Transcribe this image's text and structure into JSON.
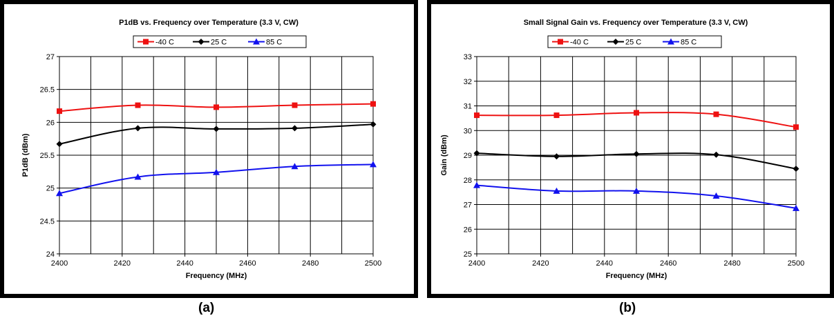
{
  "chart_data": [
    {
      "type": "line",
      "title": "P1dB vs. Frequency over Temperature (3.3 V, CW)",
      "xlabel": "Frequency (MHz)",
      "ylabel": "P1dB (dBm)",
      "xlim": [
        2400,
        2500
      ],
      "ylim": [
        24,
        27
      ],
      "xticks": [
        2400,
        2420,
        2440,
        2460,
        2480,
        2500
      ],
      "yticks": [
        "24",
        "24.5",
        "25",
        "25.5",
        "26",
        "26.5",
        "27"
      ],
      "grid": true,
      "legend": "top-center",
      "caption": "(a)",
      "series": [
        {
          "name": "-40 C",
          "color": "#ee1111",
          "marker": "square",
          "x": [
            2400,
            2425,
            2450,
            2475,
            2500
          ],
          "values": [
            26.17,
            26.26,
            26.23,
            26.26,
            26.28
          ]
        },
        {
          "name": "25 C",
          "color": "#000000",
          "marker": "diamond",
          "x": [
            2400,
            2425,
            2450,
            2475,
            2500
          ],
          "values": [
            25.67,
            25.91,
            25.9,
            25.91,
            25.97
          ]
        },
        {
          "name": "85 C",
          "color": "#1111ee",
          "marker": "triangle",
          "x": [
            2400,
            2425,
            2450,
            2475,
            2500
          ],
          "values": [
            24.92,
            25.17,
            25.24,
            25.33,
            25.36
          ]
        }
      ]
    },
    {
      "type": "line",
      "title": "Small Signal Gain vs. Frequency over Temperature (3.3 V, CW)",
      "xlabel": "Frequency (MHz)",
      "ylabel": "Gain (dBm)",
      "xlim": [
        2400,
        2500
      ],
      "ylim": [
        25,
        33
      ],
      "xticks": [
        2400,
        2420,
        2440,
        2460,
        2480,
        2500
      ],
      "yticks": [
        "25",
        "26",
        "27",
        "28",
        "29",
        "30",
        "31",
        "32",
        "33"
      ],
      "grid": true,
      "legend": "top-center",
      "caption": "(b)",
      "series": [
        {
          "name": "-40 C",
          "color": "#ee1111",
          "marker": "square",
          "x": [
            2400,
            2425,
            2450,
            2475,
            2500
          ],
          "values": [
            30.62,
            30.62,
            30.72,
            30.66,
            30.14
          ]
        },
        {
          "name": "25 C",
          "color": "#000000",
          "marker": "diamond",
          "x": [
            2400,
            2425,
            2450,
            2475,
            2500
          ],
          "values": [
            29.08,
            28.95,
            29.05,
            29.02,
            28.45
          ]
        },
        {
          "name": "85 C",
          "color": "#1111ee",
          "marker": "triangle",
          "x": [
            2400,
            2425,
            2450,
            2475,
            2500
          ],
          "values": [
            27.78,
            27.55,
            27.55,
            27.35,
            26.85
          ]
        }
      ]
    }
  ]
}
